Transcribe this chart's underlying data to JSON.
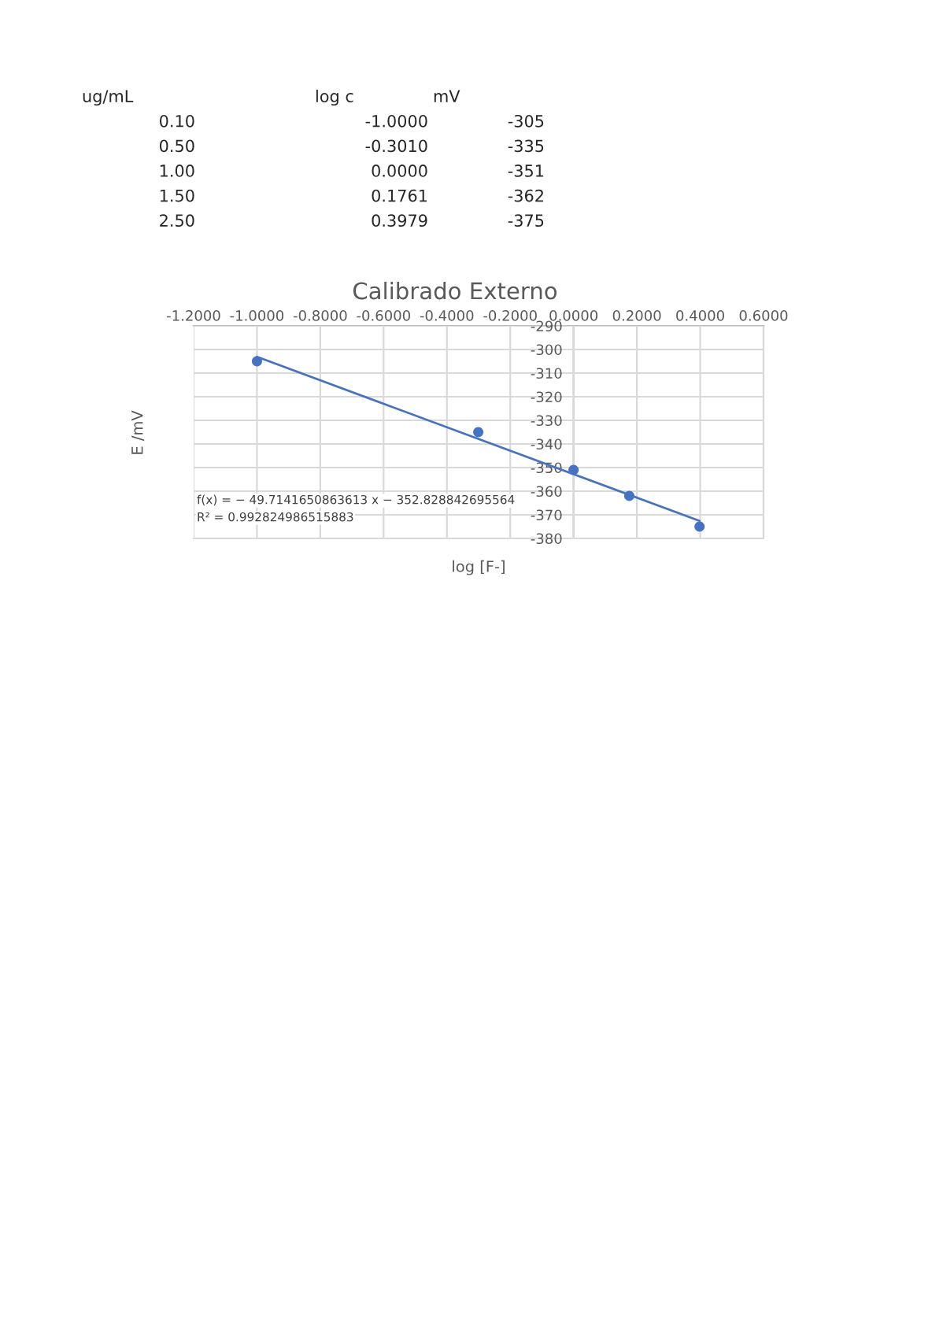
{
  "chart_data": {
    "type": "scatter",
    "title": "Calibrado Externo",
    "xlabel": "log [F-]",
    "ylabel": "E /mV",
    "x": [
      -1.0,
      -0.301,
      0.0,
      0.1761,
      0.3979
    ],
    "series": [
      {
        "color": "#4472c4",
        "marker": "circle",
        "values": [
          -305,
          -335,
          -351,
          -362,
          -375
        ]
      },
      {
        "type": "line",
        "color": "#4472c4",
        "x": [
          -1.0,
          0.3979
        ],
        "values": [
          -303.1,
          -372.6
        ]
      }
    ],
    "grid": true,
    "xlim": [
      -1.2,
      0.6
    ],
    "xticks": [
      {
        "value": -1.2,
        "label": "-1.2000"
      },
      {
        "value": -1.0,
        "label": "-1.0000"
      },
      {
        "value": -0.8,
        "label": "-0.8000"
      },
      {
        "value": -0.6,
        "label": "-0.6000"
      },
      {
        "value": -0.4,
        "label": "-0.4000"
      },
      {
        "value": -0.2,
        "label": "-0.2000"
      },
      {
        "value": 0.0,
        "label": "0.0000"
      },
      {
        "value": 0.2,
        "label": "0.2000"
      },
      {
        "value": 0.4,
        "label": "0.4000"
      },
      {
        "value": 0.6,
        "label": "0.6000"
      }
    ],
    "ylim": [
      -380,
      -290
    ],
    "yticks": [
      -290,
      -300,
      -310,
      -320,
      -330,
      -340,
      -350,
      -360,
      -370,
      -380
    ],
    "annotations": [
      "ug/mL",
      "log c",
      "mV",
      "0.10",
      "-1.0000",
      "-305",
      "0.50",
      "-0.3010",
      "-335",
      "1.00",
      "0.0000",
      "-351",
      "1.50",
      "0.1761",
      "-362",
      "2.50",
      "0.3979",
      "-375",
      "f(x) = − 49.7141650863613 x − 352.828842695564",
      "R² = 0.992824986515883"
    ]
  }
}
